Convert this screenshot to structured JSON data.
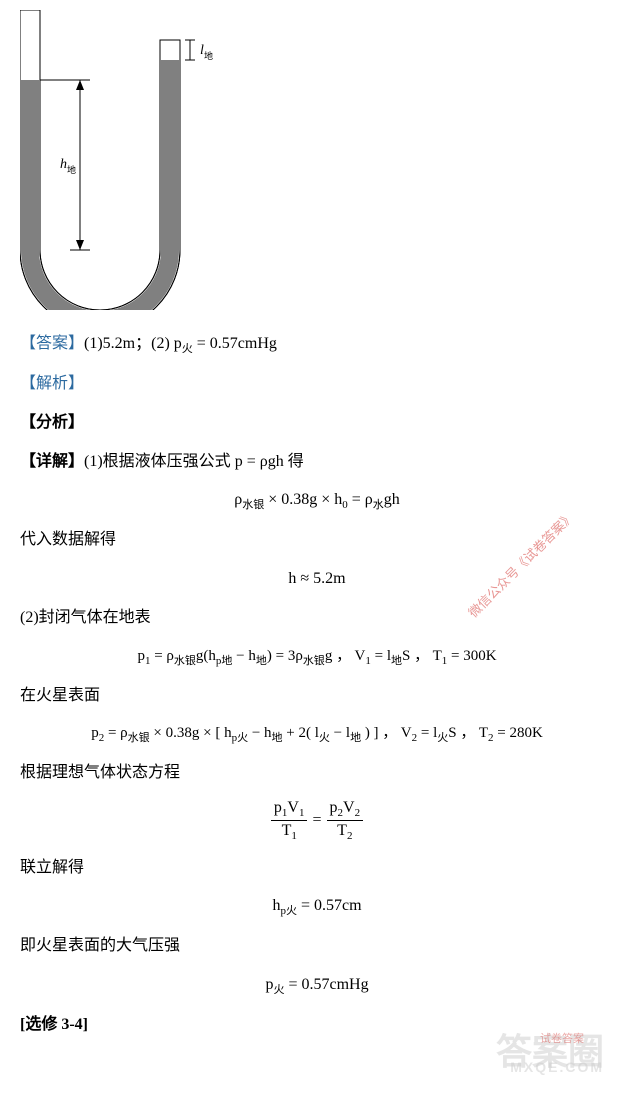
{
  "figure": {
    "l_label": "l",
    "l_sub": "地",
    "h_label": "h",
    "h_sub": "地",
    "tube_stroke": "#000000",
    "mercury_fill": "#808080",
    "figure_width": 200,
    "figure_height": 300
  },
  "answer": {
    "label": "【答案】",
    "text_part1": "(1)5.2m；(2) ",
    "eq": "p<sub>火</sub> = 0.57cmHg"
  },
  "explain": {
    "label": "【解析】"
  },
  "analysis": {
    "label": "【分析】"
  },
  "detail": {
    "label": "【详解】",
    "p1_text": "(1)根据液体压强公式 ",
    "p1_eq": "p = ρgh",
    "p1_tail": "  得"
  },
  "eq1": "ρ<sub>水银</sub> × 0.38g × h<sub>0</sub> = ρ<sub>水</sub>gh",
  "sub1": "代入数据解得",
  "eq2": "h ≈ 5.2m",
  "sub2": "(2)封闭气体在地表",
  "eq3": "p<sub>1</sub> = ρ<sub>水银</sub>g(h<sub>p地</sub> − h<sub>地</sub>) = 3ρ<sub>水银</sub>g ， V<sub>1</sub> = l<sub>地</sub>S ， T<sub>1</sub> = 300K",
  "sub3": "在火星表面",
  "eq4": "p<sub>2</sub> = ρ<sub>水银</sub> × 0.38g × [ h<sub>p火</sub> − h<sub>地</sub> + 2( l<sub>火</sub> − l<sub>地</sub> ) ] ， V<sub>2</sub> = l<sub>火</sub>S ， T<sub>2</sub> = 280K",
  "sub4": "根据理想气体状态方程",
  "eq5": {
    "left_num": "p<sub>1</sub>V<sub>1</sub>",
    "left_den": "T<sub>1</sub>",
    "right_num": "p<sub>2</sub>V<sub>2</sub>",
    "right_den": "T<sub>2</sub>"
  },
  "sub5": "联立解得",
  "eq6": "h<sub>p火</sub> = 0.57cm",
  "sub6": "即火星表面的大气压强",
  "eq7": "p<sub>火</sub> = 0.57cmHg",
  "section": {
    "label": "[选修 3-4]"
  },
  "watermarks": {
    "rot1": "微信公众号《试卷答案》",
    "rot2": "微信公众号《试卷答案》",
    "img1": "答案圈",
    "img2": "MXQE.COM",
    "img3": "试卷答案"
  },
  "colors": {
    "label_color": "#2c6aa0",
    "text_color": "#000000",
    "watermark_rot_color": "#d9534f",
    "watermark_img_color": "#cccccc"
  },
  "fonts": {
    "body_size": 16,
    "eq_size": 15,
    "sub_size": 11
  }
}
